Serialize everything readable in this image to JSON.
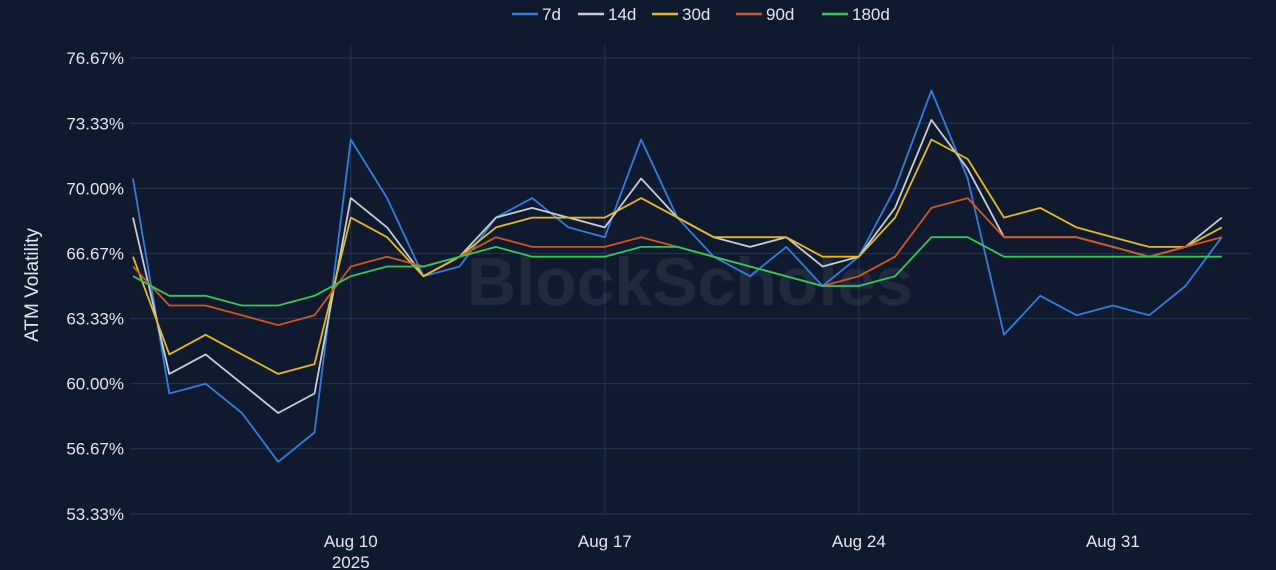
{
  "chart_data": {
    "type": "line",
    "title": "",
    "xlabel": "",
    "ylabel": "ATM Volatility",
    "y_unit": "%",
    "ylim": [
      53.33,
      76.67
    ],
    "yticks": [
      "76.67%",
      "73.33%",
      "70.00%",
      "66.67%",
      "63.33%",
      "60.00%",
      "56.67%",
      "53.33%"
    ],
    "ytick_values": [
      76.67,
      73.33,
      70.0,
      66.67,
      63.33,
      60.0,
      56.67,
      53.33
    ],
    "xlim": [
      "2025-08-03T22:00",
      "2025-09-03T20:00"
    ],
    "xticks": [
      {
        "date": "2025-08-10",
        "label": "Aug 10",
        "sublabel": "2025"
      },
      {
        "date": "2025-08-17",
        "label": "Aug 17",
        "sublabel": ""
      },
      {
        "date": "2025-08-24",
        "label": "Aug 24",
        "sublabel": ""
      },
      {
        "date": "2025-08-31",
        "label": "Aug 31",
        "sublabel": ""
      }
    ],
    "grid": true,
    "legend_position": "top-center",
    "watermark": "BlockScholes",
    "x": [
      "2025-08-04",
      "2025-08-05",
      "2025-08-06",
      "2025-08-07",
      "2025-08-08",
      "2025-08-09",
      "2025-08-10",
      "2025-08-11",
      "2025-08-12",
      "2025-08-13",
      "2025-08-14",
      "2025-08-15",
      "2025-08-16",
      "2025-08-17",
      "2025-08-18",
      "2025-08-19",
      "2025-08-20",
      "2025-08-21",
      "2025-08-22",
      "2025-08-23",
      "2025-08-24",
      "2025-08-25",
      "2025-08-26",
      "2025-08-27",
      "2025-08-28",
      "2025-08-29",
      "2025-08-30",
      "2025-08-31",
      "2025-09-01",
      "2025-09-02",
      "2025-09-03"
    ],
    "series": [
      {
        "name": "7d",
        "color": "#2f7de0",
        "values": [
          70.5,
          59.5,
          60.0,
          58.5,
          56.0,
          57.5,
          72.5,
          69.5,
          65.5,
          66.0,
          68.5,
          69.5,
          68.0,
          67.5,
          72.5,
          68.5,
          66.5,
          65.5,
          67.0,
          65.0,
          66.5,
          70.0,
          75.0,
          70.5,
          62.5,
          64.5,
          63.5,
          64.0,
          63.5,
          65.0,
          67.5
        ]
      },
      {
        "name": "14d",
        "color": "#c8ccd6",
        "values": [
          68.5,
          60.5,
          61.5,
          60.0,
          58.5,
          59.5,
          69.5,
          68.0,
          65.5,
          66.5,
          68.5,
          69.0,
          68.5,
          68.0,
          70.5,
          68.5,
          67.5,
          67.0,
          67.5,
          66.0,
          66.5,
          69.0,
          73.5,
          71.0,
          67.5,
          67.5,
          67.5,
          67.0,
          66.5,
          67.0,
          68.5
        ]
      },
      {
        "name": "30d",
        "color": "#e8b91a",
        "values": [
          66.5,
          61.5,
          62.5,
          61.5,
          60.5,
          61.0,
          68.5,
          67.5,
          65.5,
          66.5,
          68.0,
          68.5,
          68.5,
          68.5,
          69.5,
          68.5,
          67.5,
          67.5,
          67.5,
          66.5,
          66.5,
          68.5,
          72.5,
          71.5,
          68.5,
          69.0,
          68.0,
          67.5,
          67.0,
          67.0,
          68.0
        ]
      },
      {
        "name": "90d",
        "color": "#d0561a",
        "values": [
          66.0,
          64.0,
          64.0,
          63.5,
          63.0,
          63.5,
          66.0,
          66.5,
          66.0,
          66.5,
          67.5,
          67.0,
          67.0,
          67.0,
          67.5,
          67.0,
          66.5,
          66.0,
          65.5,
          65.0,
          65.5,
          66.5,
          69.0,
          69.5,
          67.5,
          67.5,
          67.5,
          67.0,
          66.5,
          67.0,
          67.5
        ]
      },
      {
        "name": "180d",
        "color": "#2ec95a",
        "values": [
          65.5,
          64.5,
          64.5,
          64.0,
          64.0,
          64.5,
          65.5,
          66.0,
          66.0,
          66.5,
          67.0,
          66.5,
          66.5,
          66.5,
          67.0,
          67.0,
          66.5,
          66.0,
          65.5,
          65.0,
          65.0,
          65.5,
          67.5,
          67.5,
          66.5,
          66.5,
          66.5,
          66.5,
          66.5,
          66.5,
          66.5
        ]
      }
    ]
  }
}
